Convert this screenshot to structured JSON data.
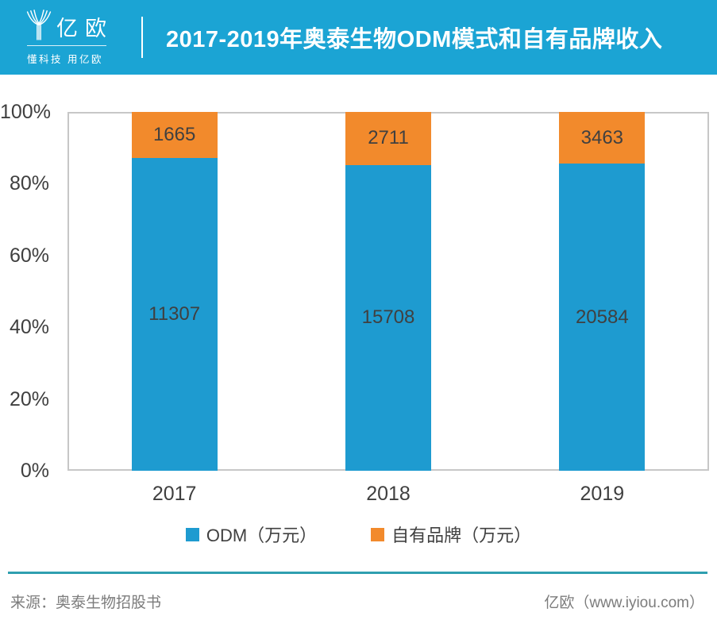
{
  "header": {
    "logo_name": "亿欧",
    "logo_slogan": "懂科技 用亿欧",
    "title": "2017-2019年奥泰生物ODM模式和自有品牌收入"
  },
  "chart_data": {
    "type": "bar",
    "variant": "100%-stacked-column",
    "title": "2017-2019年奥泰生物ODM模式和自有品牌收入",
    "categories": [
      "2017",
      "2018",
      "2019"
    ],
    "series": [
      {
        "name": "ODM（万元）",
        "color": "#1E9BD0",
        "values": [
          11307,
          15708,
          20584
        ]
      },
      {
        "name": "自有品牌（万元）",
        "color": "#F28A2C",
        "values": [
          1665,
          2711,
          3463
        ]
      }
    ],
    "xlabel": "",
    "ylabel": "",
    "ylim": [
      0,
      100
    ],
    "yticks": [
      "0%",
      "20%",
      "40%",
      "60%",
      "80%",
      "100%"
    ],
    "grid": "plot-border-only",
    "legend_position": "bottom",
    "value_labels": "inside-segments"
  },
  "footer": {
    "source": "来源：奥泰生物招股书",
    "credit": "亿欧（www.iyiou.com）"
  },
  "colors": {
    "header_bg": "#1BA4D4",
    "odm_blue": "#1E9BD0",
    "brand_orange": "#F28A2C",
    "axis_border": "#C7C7C7",
    "label_text": "#404040",
    "footer_line": "#2F9FAF",
    "footer_text": "#7C7C7C"
  }
}
